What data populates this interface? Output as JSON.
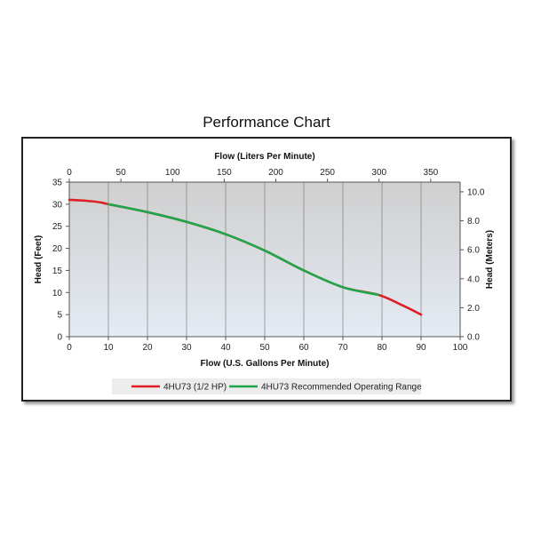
{
  "chart_data": {
    "type": "line",
    "title": "Performance Chart",
    "xlabel": "Flow (U.S. Gallons Per Minute)",
    "x2label": "Flow (Liters Per Minute)",
    "ylabel": "Head (Feet)",
    "y2label": "Head (Meters)",
    "xlim": [
      0,
      100
    ],
    "ylim": [
      0,
      35
    ],
    "x2lim": [
      0,
      378.5
    ],
    "y2lim": [
      0,
      10.67
    ],
    "xticks": [
      "0",
      "10",
      "20",
      "30",
      "40",
      "50",
      "60",
      "70",
      "80",
      "90",
      "100"
    ],
    "yticks": [
      "0",
      "5",
      "10",
      "15",
      "20",
      "25",
      "30",
      "35"
    ],
    "x2ticks": [
      "0",
      "50",
      "100",
      "150",
      "200",
      "250",
      "300",
      "350"
    ],
    "y2ticks": [
      "0.0",
      "2.0",
      "4.0",
      "6.0",
      "8.0",
      "10.0"
    ],
    "grid": true,
    "legend_position": "bottom",
    "series": [
      {
        "name": "4HU73 (1/2 HP)",
        "color": "#dd1f26",
        "x": [
          0,
          4,
          8,
          10,
          20,
          30,
          40,
          50,
          60,
          70,
          79,
          85,
          90
        ],
        "y": [
          31,
          30.8,
          30.4,
          30.0,
          28.2,
          26.0,
          23.2,
          19.5,
          15.0,
          11.2,
          9.5,
          7.2,
          5.0
        ]
      },
      {
        "name": "4HU73 Recommended Operating Range",
        "color": "#1fa64a",
        "x": [
          10,
          20,
          30,
          40,
          50,
          60,
          70,
          79
        ],
        "y": [
          30.0,
          28.2,
          26.0,
          23.2,
          19.5,
          15.0,
          11.2,
          9.5
        ]
      }
    ]
  }
}
